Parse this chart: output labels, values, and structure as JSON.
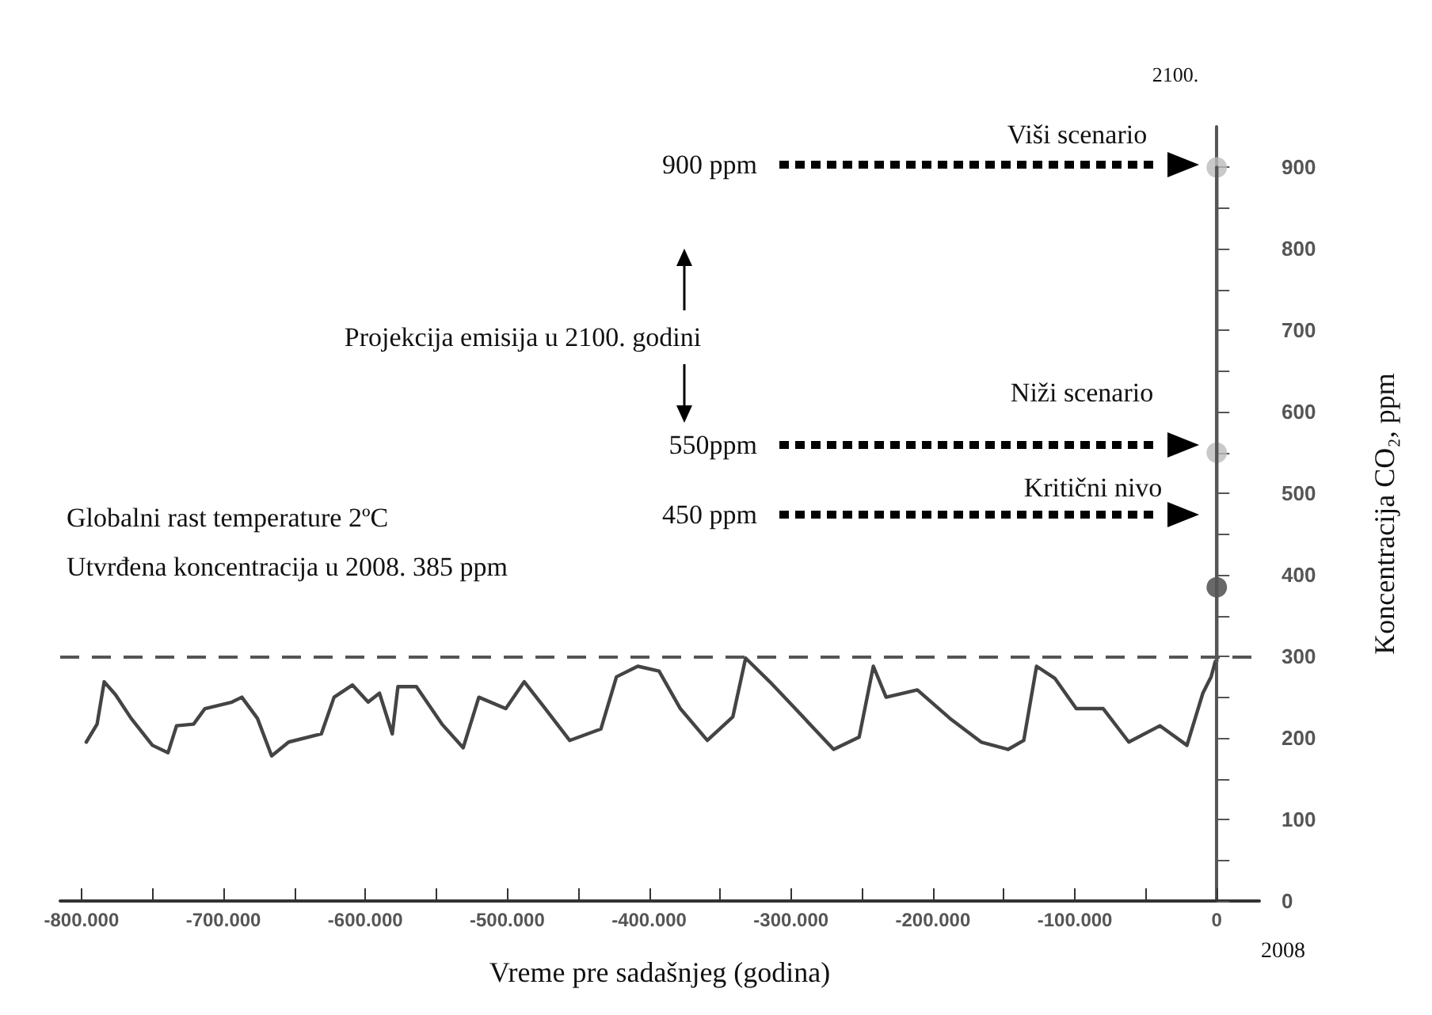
{
  "chart_data": {
    "type": "line",
    "xlabel": "Vreme pre sadašnjeg (godina)",
    "ylabel": "Koncentracija CO₂, ppm",
    "xlim": [
      -815000,
      30000
    ],
    "xticks": [
      {
        "value": -800000,
        "label": "-800.000"
      },
      {
        "value": -750000,
        "label": null
      },
      {
        "value": -700000,
        "label": "-700.000"
      },
      {
        "value": -650000,
        "label": null
      },
      {
        "value": -600000,
        "label": "-600.000"
      },
      {
        "value": -550000,
        "label": null
      },
      {
        "value": -500000,
        "label": "-500.000"
      },
      {
        "value": -450000,
        "label": null
      },
      {
        "value": -400000,
        "label": "-400.000"
      },
      {
        "value": -350000,
        "label": null
      },
      {
        "value": -300000,
        "label": "-300.000"
      },
      {
        "value": -250000,
        "label": null
      },
      {
        "value": -200000,
        "label": "-200.000"
      },
      {
        "value": -150000,
        "label": null
      },
      {
        "value": -100000,
        "label": "-100.000"
      },
      {
        "value": -50000,
        "label": null
      },
      {
        "value": 0,
        "label": "0"
      }
    ],
    "ylim": [
      0,
      950
    ],
    "yticks": [
      0,
      {
        "value": 50,
        "label": null
      },
      100,
      {
        "value": 150,
        "label": null
      },
      200,
      {
        "value": 250,
        "label": null
      },
      300,
      {
        "value": 350,
        "label": null
      },
      400,
      {
        "value": 450,
        "label": null
      },
      500,
      {
        "value": 550,
        "label": null
      },
      600,
      {
        "value": 650,
        "label": null
      },
      700,
      {
        "value": 750,
        "label": null
      },
      800,
      {
        "value": 850,
        "label": null
      },
      900
    ],
    "grid": false,
    "series": [
      {
        "color": "#444444",
        "marker": "none",
        "line_style": "solid",
        "x": [
          -796600,
          -789000,
          -784000,
          -776000,
          -765000,
          -750000,
          -739000,
          -733000,
          -721000,
          -713000,
          -694000,
          -687000,
          -676000,
          -666000,
          -654000,
          -631000,
          -622000,
          -609000,
          -598000,
          -590000,
          -581000,
          -577000,
          -564000,
          -546000,
          -531000,
          -520000,
          -501000,
          -488000,
          -475000,
          -456000,
          -434000,
          -423000,
          -408000,
          -393000,
          -378000,
          -359000,
          -341000,
          -332000,
          -315000,
          -297000,
          -270000,
          -252000,
          -242000,
          -233000,
          -211000,
          -188000,
          -166000,
          -147000,
          -136000,
          -127000,
          -114000,
          -99000,
          -80000,
          -62000,
          -40000,
          -21000,
          -9800,
          -4000,
          -1000
        ],
        "values": [
          195,
          217,
          269,
          253,
          224,
          191,
          182,
          215,
          217,
          236,
          244,
          250,
          224,
          178,
          195,
          205,
          250,
          265,
          244,
          255,
          205,
          263,
          263,
          217,
          188,
          250,
          236,
          269,
          240,
          197,
          211,
          275,
          288,
          282,
          236,
          197,
          226,
          298,
          269,
          236,
          186,
          201,
          288,
          250,
          259,
          224,
          195,
          186,
          197,
          288,
          273,
          236,
          236,
          195,
          215,
          191,
          255,
          275,
          294
        ]
      },
      {
        "type": "line",
        "color": "#555555",
        "marker": "none",
        "line_style": "solid",
        "x": [
          0,
          0
        ],
        "values": [
          294,
          900
        ]
      },
      {
        "type": "scatter",
        "marker": "circle",
        "x": [
          0,
          0,
          0
        ],
        "values": [
          385,
          550,
          900
        ],
        "colors": [
          "#444444",
          "#bbbbbb",
          "#bbbbbb"
        ]
      }
    ],
    "ref_lines": [
      {
        "axis": "y",
        "value": 300,
        "color": "#555555",
        "line_style": "dashed"
      }
    ],
    "annotations": [
      "2100.",
      "Viši scenario",
      "900 ppm",
      "Projekcija emisija u 2100. godini",
      "Niži scenario",
      "550ppm",
      "Kritični nivo",
      "Globalni rast temperature 2ºC",
      "450 ppm",
      "Utvrđena koncentracija u 2008. 385 ppm",
      "2008"
    ]
  }
}
